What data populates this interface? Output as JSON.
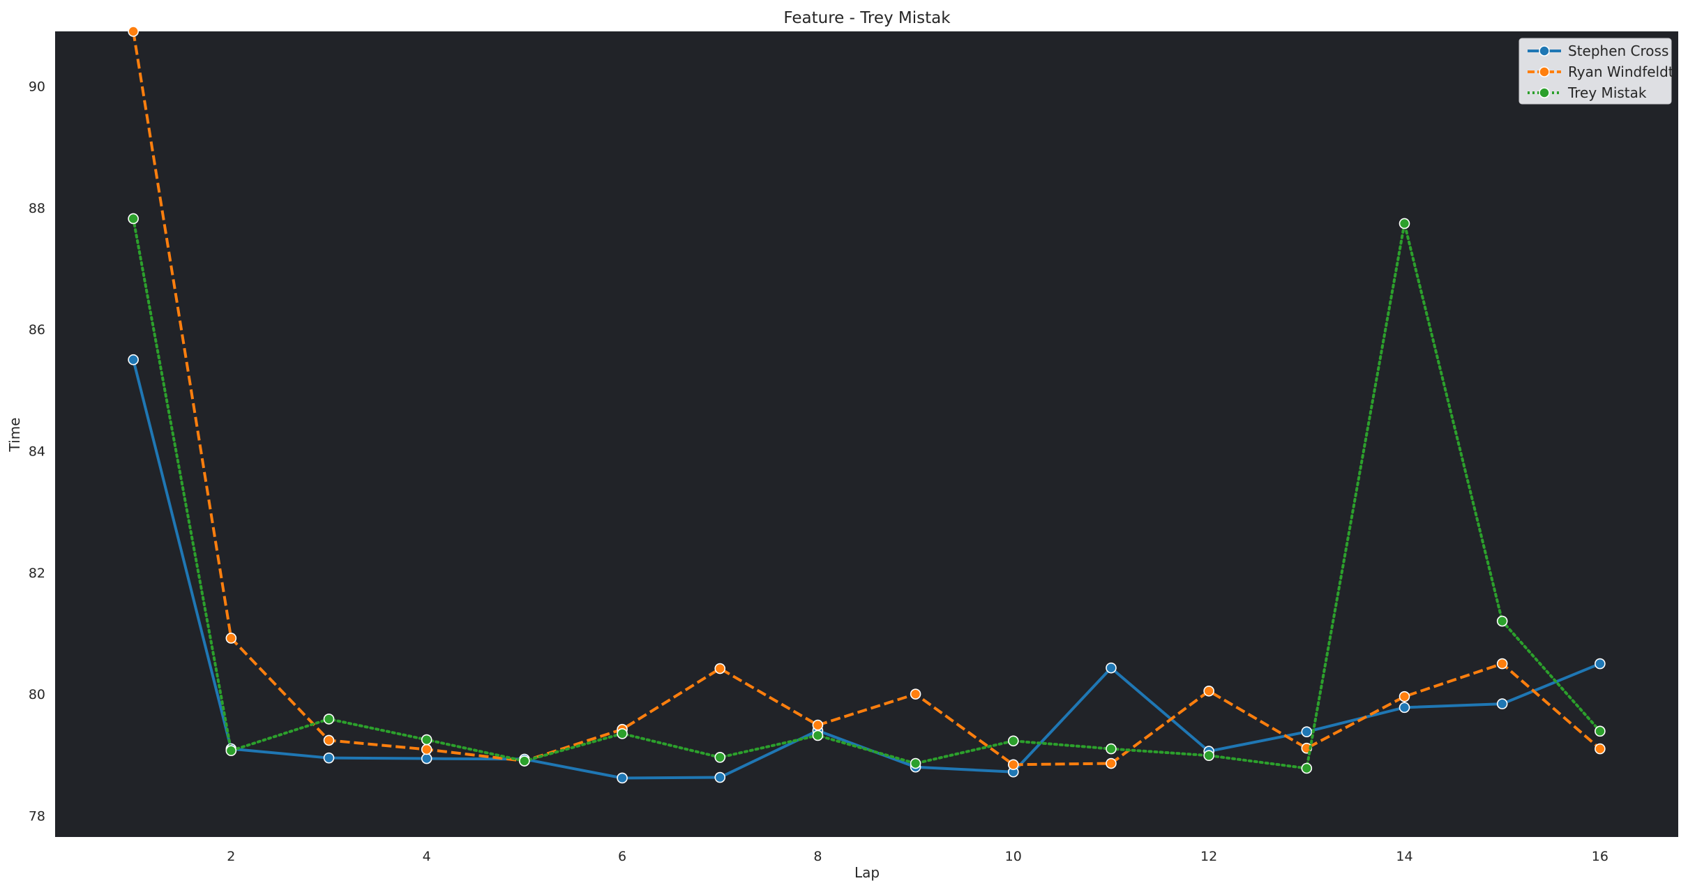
{
  "chart_data": {
    "type": "line",
    "title": "Feature - Trey Mistak",
    "xlabel": "Lap",
    "ylabel": "Time",
    "xlim": [
      0.2,
      16.8
    ],
    "ylim": [
      77.65,
      90.9
    ],
    "xticks": [
      2,
      4,
      6,
      8,
      10,
      12,
      14,
      16
    ],
    "yticks": [
      78,
      80,
      82,
      84,
      86,
      88,
      90
    ],
    "grid": false,
    "legend_position": "top-right",
    "plot_background": "#212328",
    "series": [
      {
        "name": "Stephen Cross",
        "color": "#1f77b4",
        "dash": "solid",
        "x": [
          1,
          2,
          3,
          4,
          5,
          6,
          7,
          8,
          9,
          10,
          11,
          12,
          13,
          14,
          15,
          16
        ],
        "y": [
          85.5,
          79.1,
          78.95,
          78.94,
          78.93,
          78.62,
          78.63,
          79.4,
          78.8,
          78.72,
          80.43,
          79.06,
          79.38,
          79.78,
          79.84,
          80.5
        ]
      },
      {
        "name": "Ryan Windfeldt",
        "color": "#ff7f0e",
        "dash": "dashed",
        "x": [
          1,
          2,
          3,
          4,
          5,
          6,
          7,
          8,
          9,
          10,
          11,
          12,
          13,
          14,
          15,
          16
        ],
        "y": [
          90.9,
          80.92,
          79.24,
          79.09,
          78.9,
          79.42,
          80.42,
          79.49,
          80.0,
          78.84,
          78.86,
          80.05,
          79.11,
          79.96,
          80.5,
          79.1
        ]
      },
      {
        "name": "Trey Mistak",
        "color": "#2ca02c",
        "dash": "dotted",
        "x": [
          1,
          2,
          3,
          4,
          5,
          6,
          7,
          8,
          9,
          10,
          11,
          12,
          13,
          14,
          15,
          16
        ],
        "y": [
          87.82,
          79.07,
          79.59,
          79.25,
          78.9,
          79.35,
          78.96,
          79.32,
          78.86,
          79.23,
          79.1,
          78.99,
          78.78,
          87.74,
          81.2,
          79.39
        ]
      }
    ]
  }
}
